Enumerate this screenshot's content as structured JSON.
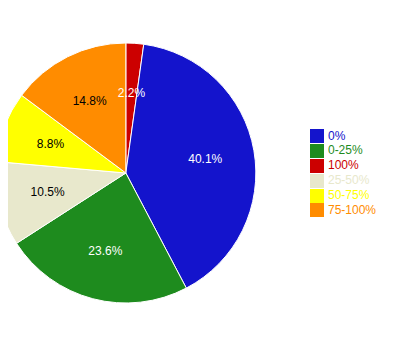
{
  "chart_data": {
    "type": "pie",
    "categories": [
      "100%",
      "0%",
      "0-25%",
      "25-50%",
      "50-75%",
      "75-100%"
    ],
    "values": [
      2.2,
      40.1,
      23.6,
      10.5,
      8.8,
      14.8
    ],
    "value_labels": [
      "2.2%",
      "40.1%",
      "23.6%",
      "10.5%",
      "8.8%",
      "14.8%"
    ],
    "colors": [
      "#CC0000",
      "#1414CC",
      "#1E8B1E",
      "#E8E8CC",
      "#FFFF00",
      "#FF8C00"
    ],
    "data_labels": true,
    "legend": "right"
  }
}
